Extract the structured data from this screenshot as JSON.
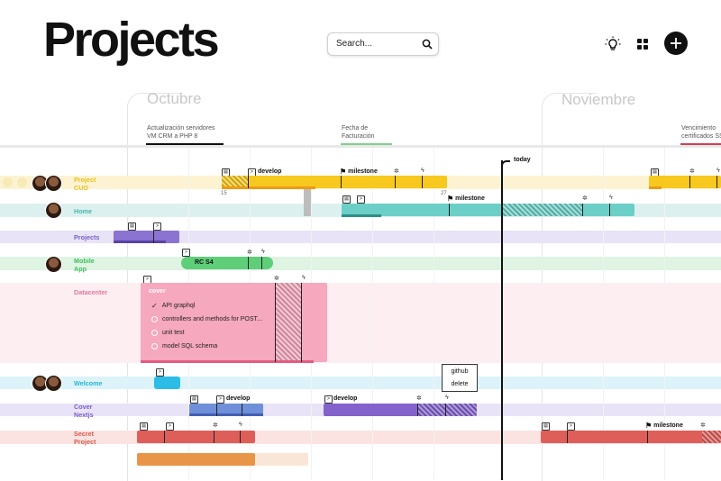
{
  "header": {
    "title": "Projects",
    "search_placeholder": "Search...",
    "icons": [
      "search-icon",
      "lightbulb-icon",
      "grid-icon",
      "plus-icon"
    ]
  },
  "months": [
    "Octubre",
    "Noviembre"
  ],
  "deadlines": [
    {
      "text": "Actualización servidores\nVM CRM a PHP 8",
      "color": "#111111"
    },
    {
      "text": "Fecha de\nFacturación",
      "color": "#7ed08d"
    },
    {
      "text": "Vencimiento\ncertificados SSL",
      "color": "#d83b55"
    }
  ],
  "today_label": "today",
  "rows": [
    {
      "label": "Project\nCUO",
      "color": "#e9c11c"
    },
    {
      "label": "Home",
      "color": "#49b7ad"
    },
    {
      "label": "Projects",
      "color": "#7a5fc7"
    },
    {
      "label": "Mobile\nApp",
      "color": "#3fbf5f"
    },
    {
      "label": "Datacenter",
      "color": "#e6789a"
    },
    {
      "label": "Welcome",
      "color": "#26b6d8"
    },
    {
      "label": "Cover\nNextjs",
      "color": "#7a5fc7"
    },
    {
      "label": "Secret\nProject",
      "color": "#d95a4f"
    }
  ],
  "labels": {
    "develop": "develop",
    "milestone": "milestone",
    "rc": "RC S4",
    "date_start": "15",
    "date_end": "27"
  },
  "card": {
    "title": "cover",
    "tasks": [
      {
        "text": "API graphql",
        "done": true
      },
      {
        "text": "controllers and methods for POST...",
        "done": false
      },
      {
        "text": "unit test",
        "done": false
      },
      {
        "text": "model SQL schema",
        "done": false
      }
    ]
  },
  "popup": {
    "github": "github",
    "delete": "delete"
  }
}
